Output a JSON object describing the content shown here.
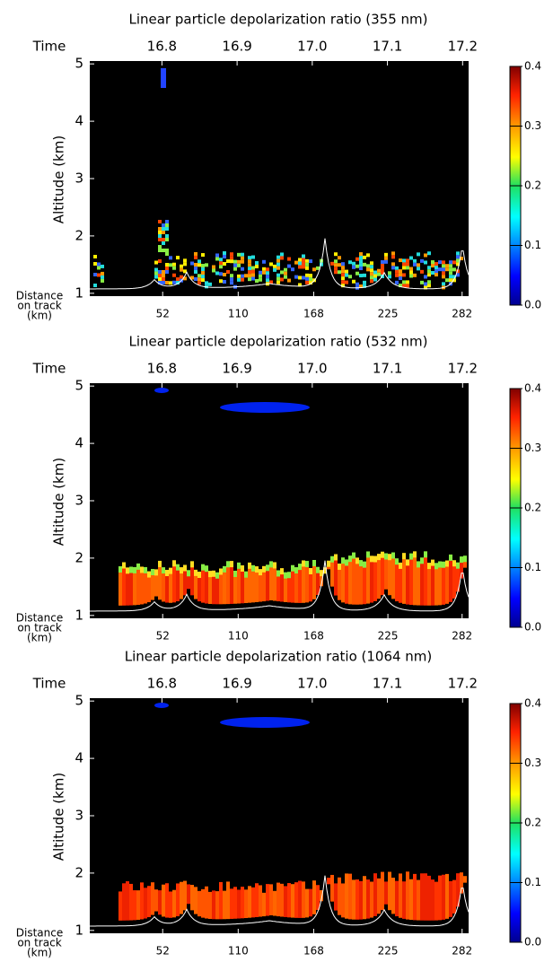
{
  "chart_data": [
    {
      "type": "heatmap",
      "title": "Linear particle depolarization ratio (355 nm)",
      "time_label": "Time",
      "ylabel": "Altitude (km)",
      "xlabel": [
        "Distance",
        "on track",
        "(km)"
      ],
      "xlim": [
        -4,
        287
      ],
      "xticks": [
        52,
        110,
        168,
        225,
        282
      ],
      "x2lim": [
        16.704,
        17.208
      ],
      "x2ticks": [
        16.8,
        16.9,
        {
          "value": 17,
          "label": "17.0"
        },
        17.1,
        17.2
      ],
      "ylim": [
        0.95,
        5.05
      ],
      "yticks": [
        1,
        2,
        3,
        4,
        5
      ],
      "colorbar": {
        "clim": [
          0,
          0.4
        ],
        "ticks": [
          {
            "value": 0,
            "label": "0.0"
          },
          0.1,
          0.2,
          0.3,
          0.4
        ]
      }
    },
    {
      "type": "heatmap",
      "title": "Linear particle depolarization ratio (532 nm)",
      "time_label": "Time",
      "ylabel": "Altitude (km)",
      "xlabel": [
        "Distance",
        "on track",
        "(km)"
      ],
      "xlim": [
        -4,
        287
      ],
      "xticks": [
        52,
        110,
        168,
        225,
        282
      ],
      "x2lim": [
        16.704,
        17.208
      ],
      "x2ticks": [
        16.8,
        16.9,
        {
          "value": 17,
          "label": "17.0"
        },
        17.1,
        17.2
      ],
      "ylim": [
        0.95,
        5.05
      ],
      "yticks": [
        1,
        2,
        3,
        4,
        5
      ],
      "colorbar": {
        "clim": [
          0,
          0.4
        ],
        "ticks": [
          {
            "value": 0,
            "label": "0.0"
          },
          0.1,
          0.2,
          0.3,
          0.4
        ]
      }
    },
    {
      "type": "heatmap",
      "title": "Linear particle depolarization ratio (1064 nm)",
      "time_label": "Time",
      "ylabel": "Altitude (km)",
      "xlabel": [
        "Distance",
        "on track",
        "(km)"
      ],
      "xlim": [
        -4,
        287
      ],
      "xticks": [
        52,
        110,
        168,
        225,
        282
      ],
      "x2lim": [
        16.704,
        17.208
      ],
      "x2ticks": [
        16.8,
        16.9,
        {
          "value": 17,
          "label": "17.0"
        },
        17.1,
        17.2
      ],
      "ylim": [
        0.95,
        5.05
      ],
      "yticks": [
        1,
        2,
        3,
        4,
        5
      ],
      "colorbar": {
        "clim": [
          0,
          0.4
        ],
        "ticks": [
          {
            "value": 0,
            "label": "0.0"
          },
          0.1,
          0.2,
          0.3,
          0.4
        ]
      }
    }
  ]
}
